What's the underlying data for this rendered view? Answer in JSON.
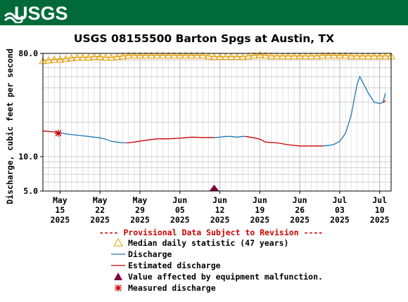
{
  "header": {
    "logo_text": "USGS",
    "brand_color": "#006a3a"
  },
  "chart_data": {
    "type": "line",
    "title": "USGS 08155500 Barton Spgs at Austin, TX",
    "ylabel": "Discharge, cubic feet per second",
    "y_scale": "log",
    "ylim": [
      5.0,
      80.0
    ],
    "y_ticks": [
      {
        "label": "80.0",
        "value": 80
      },
      {
        "label": "10.0",
        "value": 10
      },
      {
        "label": "5.0",
        "value": 5
      }
    ],
    "xlim": [
      "2025-05-12",
      "2025-07-12"
    ],
    "x_ticks": [
      {
        "date": "2025-05-15",
        "line1": "May",
        "line2": "15",
        "line3": "2025"
      },
      {
        "date": "2025-05-22",
        "line1": "May",
        "line2": "22",
        "line3": "2025"
      },
      {
        "date": "2025-05-29",
        "line1": "May",
        "line2": "29",
        "line3": "2025"
      },
      {
        "date": "2025-06-05",
        "line1": "Jun",
        "line2": "05",
        "line3": "2025"
      },
      {
        "date": "2025-06-12",
        "line1": "Jun",
        "line2": "12",
        "line3": "2025"
      },
      {
        "date": "2025-06-19",
        "line1": "Jun",
        "line2": "19",
        "line3": "2025"
      },
      {
        "date": "2025-06-26",
        "line1": "Jun",
        "line2": "26",
        "line3": "2025"
      },
      {
        "date": "2025-07-03",
        "line1": "Jul",
        "line2": "03",
        "line3": "2025"
      },
      {
        "date": "2025-07-10",
        "line1": "Jul",
        "line2": "10",
        "line3": "2025"
      }
    ],
    "grid": true,
    "colors": {
      "median": "#e8a000",
      "discharge": "#1f78b4",
      "estimated": "#cc0000",
      "malfunction": "#800040",
      "measured": "#cc0000",
      "provisional": "#cc0000"
    },
    "series": [
      {
        "name": "Median daily statistic (47 years)",
        "kind": "median",
        "points": [
          [
            "2025-05-12",
            69
          ],
          [
            "2025-05-13",
            70
          ],
          [
            "2025-05-14",
            71
          ],
          [
            "2025-05-15",
            71
          ],
          [
            "2025-05-16",
            72
          ],
          [
            "2025-05-17",
            73
          ],
          [
            "2025-05-18",
            74
          ],
          [
            "2025-05-19",
            74
          ],
          [
            "2025-05-20",
            74
          ],
          [
            "2025-05-21",
            75
          ],
          [
            "2025-05-22",
            75
          ],
          [
            "2025-05-23",
            74
          ],
          [
            "2025-05-24",
            74
          ],
          [
            "2025-05-25",
            75
          ],
          [
            "2025-05-26",
            76
          ],
          [
            "2025-05-27",
            77
          ],
          [
            "2025-05-28",
            77
          ],
          [
            "2025-05-29",
            77
          ],
          [
            "2025-05-30",
            77
          ],
          [
            "2025-05-31",
            77
          ],
          [
            "2025-06-01",
            77
          ],
          [
            "2025-06-02",
            77
          ],
          [
            "2025-06-03",
            77
          ],
          [
            "2025-06-04",
            77
          ],
          [
            "2025-06-05",
            77
          ],
          [
            "2025-06-06",
            77
          ],
          [
            "2025-06-07",
            77
          ],
          [
            "2025-06-08",
            77
          ],
          [
            "2025-06-09",
            77
          ],
          [
            "2025-06-10",
            76
          ],
          [
            "2025-06-11",
            75
          ],
          [
            "2025-06-12",
            75
          ],
          [
            "2025-06-13",
            75
          ],
          [
            "2025-06-14",
            75
          ],
          [
            "2025-06-15",
            75
          ],
          [
            "2025-06-16",
            75
          ],
          [
            "2025-06-17",
            76
          ],
          [
            "2025-06-18",
            77
          ],
          [
            "2025-06-19",
            78
          ],
          [
            "2025-06-20",
            77
          ],
          [
            "2025-06-21",
            76
          ],
          [
            "2025-06-22",
            76
          ],
          [
            "2025-06-23",
            76
          ],
          [
            "2025-06-24",
            76
          ],
          [
            "2025-06-25",
            76
          ],
          [
            "2025-06-26",
            76
          ],
          [
            "2025-06-27",
            76
          ],
          [
            "2025-06-28",
            76
          ],
          [
            "2025-06-29",
            76
          ],
          [
            "2025-06-30",
            77
          ],
          [
            "2025-07-01",
            77
          ],
          [
            "2025-07-02",
            77
          ],
          [
            "2025-07-03",
            77
          ],
          [
            "2025-07-04",
            77
          ],
          [
            "2025-07-05",
            76
          ],
          [
            "2025-07-06",
            76
          ],
          [
            "2025-07-07",
            76
          ],
          [
            "2025-07-08",
            76
          ],
          [
            "2025-07-09",
            76
          ],
          [
            "2025-07-10",
            76
          ],
          [
            "2025-07-11",
            76
          ],
          [
            "2025-07-12",
            76
          ]
        ]
      },
      {
        "name": "Discharge",
        "kind": "discharge",
        "segments": [
          [
            [
              "2025-05-14.2",
              16.4
            ],
            [
              "2025-05-15",
              16.2
            ],
            [
              "2025-05-16",
              15.8
            ],
            [
              "2025-05-17",
              15.6
            ],
            [
              "2025-05-18",
              15.4
            ],
            [
              "2025-05-19",
              15.2
            ],
            [
              "2025-05-20",
              15.0
            ],
            [
              "2025-05-21",
              14.8
            ],
            [
              "2025-05-22",
              14.6
            ],
            [
              "2025-05-23",
              14.2
            ],
            [
              "2025-05-24",
              13.6
            ],
            [
              "2025-05-25",
              13.4
            ],
            [
              "2025-05-26",
              13.2
            ],
            [
              "2025-05-26.7",
              13.2
            ]
          ],
          [
            [
              "2025-06-11",
              14.7
            ],
            [
              "2025-06-12",
              14.8
            ],
            [
              "2025-06-13",
              15.0
            ],
            [
              "2025-06-14",
              15.0
            ],
            [
              "2025-06-15",
              14.8
            ],
            [
              "2025-06-16",
              15.0
            ],
            [
              "2025-06-16.5",
              15.0
            ]
          ],
          [
            [
              "2025-06-30",
              12.4
            ],
            [
              "2025-07-01",
              12.5
            ],
            [
              "2025-07-02",
              12.8
            ],
            [
              "2025-07-03",
              13.6
            ],
            [
              "2025-07-04",
              16.0
            ],
            [
              "2025-07-05",
              23.0
            ],
            [
              "2025-07-06",
              42.0
            ],
            [
              "2025-07-06.5",
              50.0
            ],
            [
              "2025-07-07",
              45.0
            ],
            [
              "2025-07-08",
              36.0
            ],
            [
              "2025-07-09",
              30.0
            ],
            [
              "2025-07-10",
              29.0
            ],
            [
              "2025-07-10.6",
              30.0
            ],
            [
              "2025-07-11",
              36.0
            ]
          ]
        ]
      },
      {
        "name": "Estimated discharge",
        "kind": "estimated",
        "segments": [
          [
            [
              "2025-05-12",
              16.8
            ],
            [
              "2025-05-13",
              16.6
            ],
            [
              "2025-05-14.2",
              16.4
            ]
          ],
          [
            [
              "2025-05-26.7",
              13.2
            ],
            [
              "2025-05-28",
              13.4
            ],
            [
              "2025-05-30",
              13.9
            ],
            [
              "2025-06-01",
              14.3
            ],
            [
              "2025-06-03",
              14.3
            ],
            [
              "2025-06-05",
              14.5
            ],
            [
              "2025-06-07",
              14.8
            ],
            [
              "2025-06-09",
              14.7
            ],
            [
              "2025-06-11",
              14.7
            ]
          ],
          [
            [
              "2025-06-16.5",
              15.0
            ],
            [
              "2025-06-18",
              14.6
            ],
            [
              "2025-06-19",
              14.2
            ],
            [
              "2025-06-20",
              13.4
            ],
            [
              "2025-06-22",
              13.2
            ],
            [
              "2025-06-24",
              12.7
            ],
            [
              "2025-06-26",
              12.4
            ],
            [
              "2025-06-28",
              12.4
            ],
            [
              "2025-06-30",
              12.4
            ]
          ],
          [
            [
              "2025-07-10.6",
              29.6
            ],
            [
              "2025-07-11",
              31.0
            ]
          ]
        ]
      }
    ],
    "markers": [
      {
        "name": "Value affected by equipment malfunction.",
        "kind": "malfunction",
        "date": "2025-06-11",
        "value": 5.0
      },
      {
        "name": "Measured discharge",
        "kind": "measured",
        "date": "2025-05-14.7",
        "value": 16.0
      }
    ],
    "provisional_note": "---- Provisional Data Subject to Revision ----",
    "legend": [
      {
        "kind": "median",
        "label": "Median daily statistic (47 years)"
      },
      {
        "kind": "discharge",
        "label": "Discharge"
      },
      {
        "kind": "estimated",
        "label": "Estimated discharge"
      },
      {
        "kind": "malfunction",
        "label": "Value affected by equipment malfunction."
      },
      {
        "kind": "measured",
        "label": "Measured discharge"
      }
    ],
    "legend_position": "bottom"
  }
}
